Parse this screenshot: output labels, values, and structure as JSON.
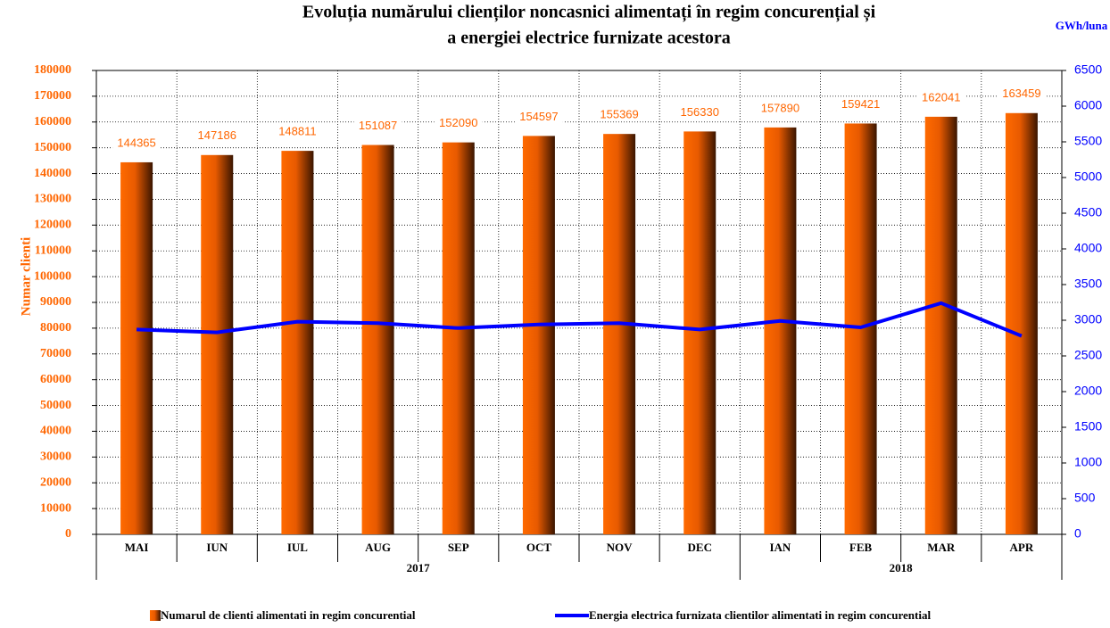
{
  "chart_data": {
    "type": "bar_line",
    "title": [
      "Evoluția numărului clienților noncasnici alimentați în regim concurențial și",
      "a energiei electrice furnizate acestora"
    ],
    "y_label": "Numar clienti",
    "y2_label": "GWh/luna",
    "categories": [
      "MAI",
      "IUN",
      "IUL",
      "AUG",
      "SEP",
      "OCT",
      "NOV",
      "DEC",
      "IAN",
      "FEB",
      "MAR",
      "APR"
    ],
    "years": [
      "2017",
      "2017",
      "2017",
      "2017",
      "2017",
      "2017",
      "2017",
      "2017",
      "2018",
      "2018",
      "2018",
      "2018"
    ],
    "series": [
      {
        "name": "Numarul de clienti alimentati in regim concurential",
        "type": "bar",
        "color": "#ff6600",
        "values": [
          144365,
          147186,
          148811,
          151087,
          152090,
          154597,
          155369,
          156330,
          157890,
          159421,
          162041,
          163459
        ]
      },
      {
        "name": "Energia electrica furnizata clientilor alimentati in regim concurential",
        "type": "line",
        "axis": "y2",
        "color": "#0000ff",
        "values": [
          2870,
          2830,
          2980,
          2960,
          2890,
          2940,
          2960,
          2870,
          2990,
          2900,
          3240,
          2780
        ]
      }
    ],
    "ylim": [
      0,
      180000
    ],
    "yticks": [
      0,
      10000,
      20000,
      30000,
      40000,
      50000,
      60000,
      70000,
      80000,
      90000,
      100000,
      110000,
      120000,
      130000,
      140000,
      150000,
      160000,
      170000,
      180000
    ],
    "y2lim": [
      0,
      6500
    ],
    "y2ticks": [
      0,
      500,
      1000,
      1500,
      2000,
      2500,
      3000,
      3500,
      4000,
      4500,
      5000,
      5500,
      6000,
      6500
    ],
    "grid": true
  }
}
